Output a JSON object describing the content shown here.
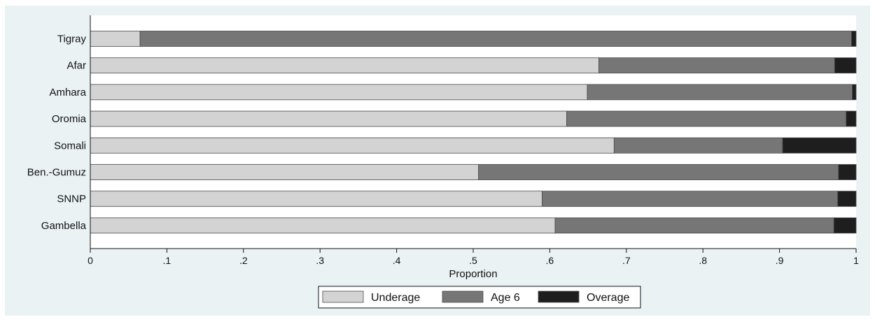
{
  "chart_data": {
    "type": "bar",
    "orientation": "horizontal",
    "stacked": true,
    "categories": [
      "Tigray",
      "Afar",
      "Amhara",
      "Oromia",
      "Somali",
      "Ben.-Gumuz",
      "SNNP",
      "Gambella"
    ],
    "series": [
      {
        "name": "Underage",
        "values": [
          0.065,
          0.664,
          0.649,
          0.622,
          0.684,
          0.507,
          0.59,
          0.607
        ]
      },
      {
        "name": "Age 6",
        "values": [
          0.929,
          0.308,
          0.346,
          0.365,
          0.22,
          0.47,
          0.386,
          0.364
        ]
      },
      {
        "name": "Overage",
        "values": [
          0.006,
          0.028,
          0.005,
          0.013,
          0.096,
          0.023,
          0.024,
          0.029
        ]
      }
    ],
    "xlabel": "Proportion",
    "xlim": [
      0,
      1
    ],
    "x_ticks": [
      "0",
      ".1",
      ".2",
      ".3",
      ".4",
      ".5",
      ".6",
      ".7",
      ".8",
      ".9",
      "1"
    ],
    "grid": false,
    "legend_position": "bottom",
    "colors": {
      "Underage": "#d3d3d3",
      "Age 6": "#767676",
      "Overage": "#1e1e1e",
      "outer_background": "#eaf2f3",
      "plot_background": "#ffffff"
    }
  }
}
